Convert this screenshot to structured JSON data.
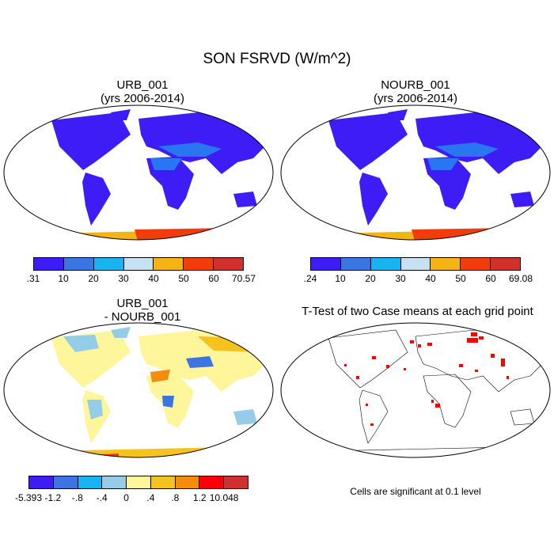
{
  "figure_title": "SON FSRVD (W/m^2)",
  "panels": {
    "tl": {
      "title_line1": "URB_001",
      "title_line2": "(yrs 2006-2014)"
    },
    "tr": {
      "title_line1": "NOURB_001",
      "title_line2": "(yrs 2006-2014)"
    },
    "bl": {
      "title_line1": "URB_001",
      "title_line2": "- NOURB_001"
    },
    "br": {
      "title_line1": "T-Test of two Case means at each grid point"
    }
  },
  "colorbars": {
    "tl": {
      "labels": [
        ".31",
        "10",
        "20",
        "30",
        "40",
        "50",
        "60",
        "70.57"
      ],
      "colors": [
        "#3d1cf5",
        "#3c74e4",
        "#18b4f0",
        "#c6e2f2",
        "#f5b314",
        "#f33c0b",
        "#d2302d"
      ]
    },
    "tr": {
      "labels": [
        ".24",
        "10",
        "20",
        "30",
        "40",
        "50",
        "60",
        "69.08"
      ],
      "colors": [
        "#3d1cf5",
        "#3c74e4",
        "#18b4f0",
        "#c6e2f2",
        "#f5b314",
        "#f33c0b",
        "#d2302d"
      ]
    },
    "bl": {
      "labels": [
        "-5.393",
        "-1.2",
        "-.8",
        "-.4",
        "0",
        ".4",
        ".8",
        "1.2",
        "10.048"
      ],
      "colors": [
        "#3d1cf5",
        "#3c74e4",
        "#18b4f0",
        "#95cde8",
        "#fff59b",
        "#f5c21e",
        "#f58d0c",
        "#fc0008",
        "#d2302d"
      ]
    }
  },
  "significance_note": "Cells are significant at 0.1 level"
}
